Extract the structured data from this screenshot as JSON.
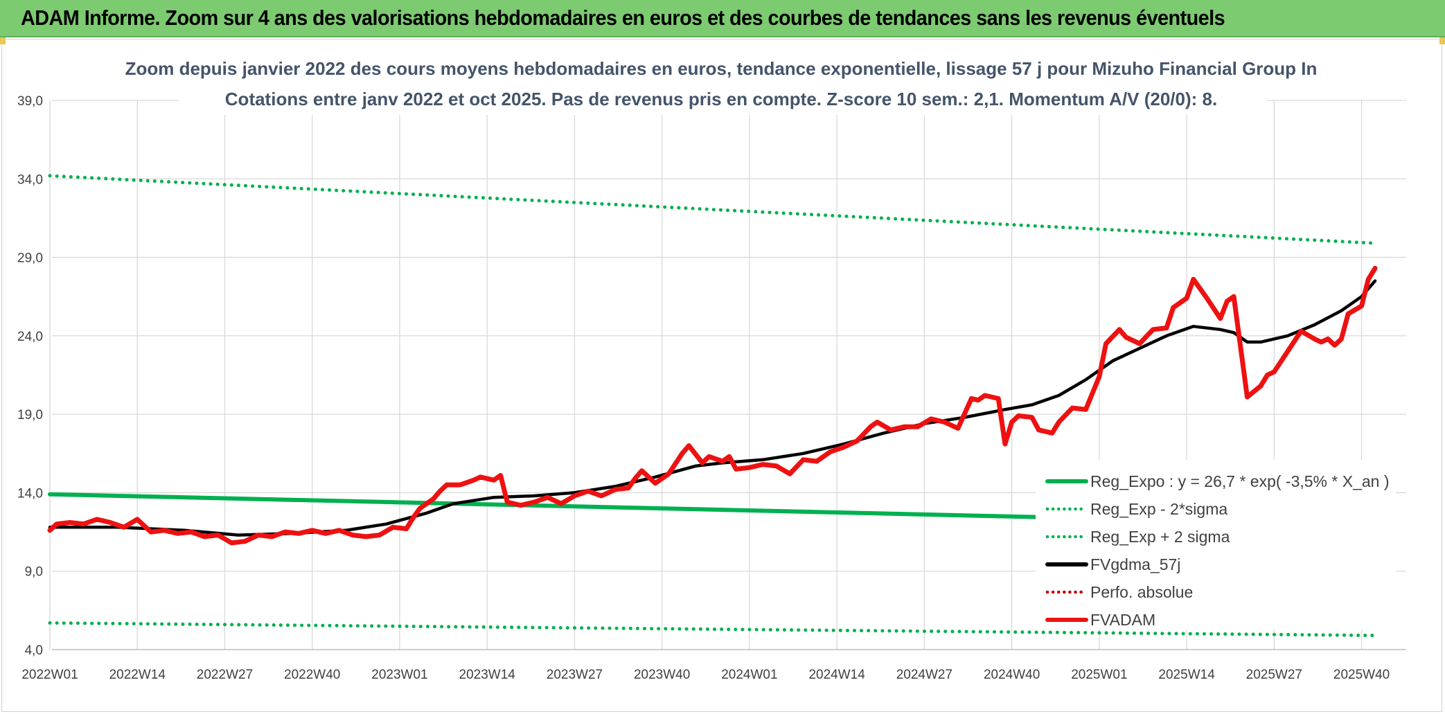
{
  "header": {
    "title": "ADAM Informe. Zoom sur 4 ans des valorisations hebdomadaires en euros et des courbes de tendances sans les revenus éventuels"
  },
  "chart_data": {
    "type": "line",
    "title": "Zoom depuis janvier 2022 des cours moyens hebdomadaires en euros, tendance exponentielle, lissage 57 j pour Mizuho Financial Group In",
    "subtitle": "Cotations entre janv 2022 et oct 2025. Pas de revenus pris en compte. Z-score 10 sem.: 2,1. Momentum A/V (20/0): 8.",
    "xlabel": "",
    "ylabel": "",
    "ylim": [
      4,
      39
    ],
    "yticks": [
      "4,0",
      "9,0",
      "14,0",
      "19,0",
      "24,0",
      "29,0",
      "34,0",
      "39,0"
    ],
    "x_tick_labels": [
      "2022W01",
      "2022W14",
      "2022W27",
      "2022W40",
      "2023W01",
      "2023W14",
      "2023W27",
      "2023W40",
      "2024W01",
      "2024W14",
      "2024W27",
      "2024W40",
      "2025W01",
      "2025W14",
      "2025W27",
      "2025W40"
    ],
    "x_range_weeks": [
      0,
      197
    ],
    "grid": true,
    "legend_position": "right",
    "series": [
      {
        "name": "Reg_Expo : y = 26,7 * exp( -3,5% *  X_an )",
        "style": "solid",
        "color": "#00b050",
        "points": [
          [
            0,
            13.9
          ],
          [
            197,
            11.95
          ]
        ]
      },
      {
        "name": "Reg_Exp - 2*sigma",
        "style": "dotted",
        "color": "#00b050",
        "points": [
          [
            0,
            5.7
          ],
          [
            197,
            4.9
          ]
        ]
      },
      {
        "name": "Reg_Exp + 2 sigma",
        "style": "dotted",
        "color": "#00b050",
        "points": [
          [
            0,
            34.2
          ],
          [
            197,
            29.9
          ]
        ]
      },
      {
        "name": "FVgdma_57j",
        "style": "solid",
        "color": "#000000",
        "points": [
          [
            0,
            11.8
          ],
          [
            10,
            11.8
          ],
          [
            20,
            11.6
          ],
          [
            28,
            11.3
          ],
          [
            36,
            11.4
          ],
          [
            44,
            11.6
          ],
          [
            50,
            12.0
          ],
          [
            56,
            12.7
          ],
          [
            60,
            13.3
          ],
          [
            66,
            13.7
          ],
          [
            72,
            13.8
          ],
          [
            78,
            14.0
          ],
          [
            84,
            14.4
          ],
          [
            90,
            15.0
          ],
          [
            96,
            15.7
          ],
          [
            100,
            15.9
          ],
          [
            106,
            16.1
          ],
          [
            112,
            16.5
          ],
          [
            118,
            17.1
          ],
          [
            124,
            17.8
          ],
          [
            130,
            18.4
          ],
          [
            136,
            18.8
          ],
          [
            142,
            19.3
          ],
          [
            146,
            19.6
          ],
          [
            150,
            20.2
          ],
          [
            154,
            21.2
          ],
          [
            158,
            22.4
          ],
          [
            162,
            23.2
          ],
          [
            166,
            24.0
          ],
          [
            170,
            24.6
          ],
          [
            174,
            24.4
          ],
          [
            176,
            24.2
          ],
          [
            178,
            23.6
          ],
          [
            180,
            23.6
          ],
          [
            184,
            24.0
          ],
          [
            188,
            24.7
          ],
          [
            192,
            25.6
          ],
          [
            195,
            26.5
          ],
          [
            197,
            27.5
          ]
        ]
      },
      {
        "name": "Perfo. absolue",
        "style": "dotted",
        "color": "#c00000",
        "points": []
      },
      {
        "name": "FVADAM",
        "style": "solid",
        "color": "#ee1111",
        "points": [
          [
            0,
            11.6
          ],
          [
            1,
            12.0
          ],
          [
            3,
            12.1
          ],
          [
            5,
            12.0
          ],
          [
            7,
            12.3
          ],
          [
            9,
            12.1
          ],
          [
            11,
            11.8
          ],
          [
            13,
            12.3
          ],
          [
            15,
            11.5
          ],
          [
            17,
            11.6
          ],
          [
            19,
            11.4
          ],
          [
            21,
            11.5
          ],
          [
            23,
            11.2
          ],
          [
            25,
            11.3
          ],
          [
            27,
            10.8
          ],
          [
            29,
            10.9
          ],
          [
            31,
            11.3
          ],
          [
            33,
            11.2
          ],
          [
            35,
            11.5
          ],
          [
            37,
            11.4
          ],
          [
            39,
            11.6
          ],
          [
            41,
            11.4
          ],
          [
            43,
            11.6
          ],
          [
            45,
            11.3
          ],
          [
            47,
            11.2
          ],
          [
            49,
            11.3
          ],
          [
            51,
            11.8
          ],
          [
            53,
            11.7
          ],
          [
            54,
            12.4
          ],
          [
            55,
            13.0
          ],
          [
            57,
            13.6
          ],
          [
            58,
            14.1
          ],
          [
            59,
            14.5
          ],
          [
            61,
            14.5
          ],
          [
            63,
            14.8
          ],
          [
            64,
            15.0
          ],
          [
            66,
            14.8
          ],
          [
            67,
            15.1
          ],
          [
            68,
            13.4
          ],
          [
            70,
            13.2
          ],
          [
            72,
            13.4
          ],
          [
            74,
            13.7
          ],
          [
            76,
            13.3
          ],
          [
            78,
            13.8
          ],
          [
            80,
            14.1
          ],
          [
            82,
            13.8
          ],
          [
            84,
            14.2
          ],
          [
            86,
            14.3
          ],
          [
            87,
            14.9
          ],
          [
            88,
            15.4
          ],
          [
            90,
            14.6
          ],
          [
            92,
            15.2
          ],
          [
            94,
            16.5
          ],
          [
            95,
            17.0
          ],
          [
            97,
            15.9
          ],
          [
            98,
            16.3
          ],
          [
            100,
            16.0
          ],
          [
            101,
            16.3
          ],
          [
            102,
            15.5
          ],
          [
            104,
            15.6
          ],
          [
            106,
            15.8
          ],
          [
            108,
            15.7
          ],
          [
            110,
            15.2
          ],
          [
            112,
            16.1
          ],
          [
            114,
            16.0
          ],
          [
            116,
            16.6
          ],
          [
            118,
            16.9
          ],
          [
            120,
            17.3
          ],
          [
            122,
            18.2
          ],
          [
            123,
            18.5
          ],
          [
            125,
            18.0
          ],
          [
            127,
            18.2
          ],
          [
            129,
            18.2
          ],
          [
            131,
            18.7
          ],
          [
            133,
            18.5
          ],
          [
            135,
            18.1
          ],
          [
            137,
            20.0
          ],
          [
            138,
            19.9
          ],
          [
            139,
            20.2
          ],
          [
            141,
            20.0
          ],
          [
            142,
            17.1
          ],
          [
            143,
            18.5
          ],
          [
            144,
            18.9
          ],
          [
            146,
            18.8
          ],
          [
            147,
            18.0
          ],
          [
            149,
            17.8
          ],
          [
            150,
            18.5
          ],
          [
            152,
            19.4
          ],
          [
            154,
            19.3
          ],
          [
            156,
            21.4
          ],
          [
            157,
            23.5
          ],
          [
            159,
            24.4
          ],
          [
            160,
            23.9
          ],
          [
            162,
            23.5
          ],
          [
            164,
            24.4
          ],
          [
            166,
            24.5
          ],
          [
            167,
            25.8
          ],
          [
            169,
            26.4
          ],
          [
            170,
            27.6
          ],
          [
            172,
            26.4
          ],
          [
            174,
            25.1
          ],
          [
            175,
            26.2
          ],
          [
            176,
            26.5
          ],
          [
            178,
            20.1
          ],
          [
            180,
            20.8
          ],
          [
            181,
            21.5
          ],
          [
            182,
            21.7
          ],
          [
            184,
            23.0
          ],
          [
            186,
            24.3
          ],
          [
            188,
            23.8
          ],
          [
            189,
            23.6
          ],
          [
            190,
            23.8
          ],
          [
            191,
            23.4
          ],
          [
            192,
            23.8
          ],
          [
            193,
            25.4
          ],
          [
            195,
            25.9
          ],
          [
            196,
            27.6
          ],
          [
            197,
            28.3
          ]
        ]
      }
    ]
  }
}
